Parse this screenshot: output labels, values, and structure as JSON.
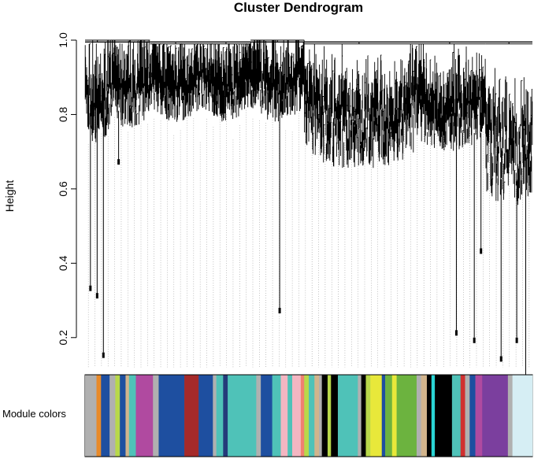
{
  "chart_data": {
    "type": "dendrogram",
    "title": "Cluster Dendrogram",
    "ylabel": "Height",
    "ylim": [
      0.1,
      1.0
    ],
    "yticks": [
      "0.2",
      "0.4",
      "0.6",
      "0.8",
      "1.0"
    ],
    "yticks_values": [
      0.2,
      0.4,
      0.6,
      0.8,
      1.0
    ],
    "color_bar_label": "Module colors",
    "palette": {
      "blue": "#1e4fa0",
      "turquoise": "#4fc2b8",
      "brown": "#a52a2a",
      "magenta": "#b04aa0",
      "pink": "#f4b6c2",
      "tan": "#d2b48c",
      "black": "#000000",
      "yellow": "#e8e83a",
      "green": "#6cb33f",
      "purple": "#7b3f9e",
      "lightcyan": "#d6eef4",
      "grey": "#b0b0b0",
      "salmon": "#f08070",
      "orange": "#e88a2a",
      "greenyellow": "#b8d84a",
      "cyan": "#2ad4d4",
      "red": "#d03030",
      "midnightblue": "#243a7a"
    },
    "dendrogram_groups": [
      {
        "start": 0.0,
        "end": 0.055,
        "merge_height": 1.0,
        "leaf_min": 0.72,
        "leaf_max": 0.95,
        "outliers": [
          [
            0.012,
            0.34
          ],
          [
            0.027,
            0.32
          ],
          [
            0.041,
            0.16
          ]
        ]
      },
      {
        "start": 0.055,
        "end": 0.145,
        "merge_height": 1.0,
        "leaf_min": 0.76,
        "leaf_max": 0.97,
        "outliers": [
          [
            0.075,
            0.68
          ]
        ]
      },
      {
        "start": 0.145,
        "end": 0.26,
        "merge_height": 0.99,
        "leaf_min": 0.78,
        "leaf_max": 0.96,
        "outliers": []
      },
      {
        "start": 0.26,
        "end": 0.37,
        "merge_height": 0.99,
        "leaf_min": 0.78,
        "leaf_max": 0.96,
        "outliers": []
      },
      {
        "start": 0.37,
        "end": 0.49,
        "merge_height": 1.0,
        "leaf_min": 0.78,
        "leaf_max": 0.97,
        "outliers": [
          [
            0.435,
            0.28
          ]
        ]
      },
      {
        "start": 0.49,
        "end": 0.735,
        "merge_height": 0.99,
        "leaf_min": 0.65,
        "leaf_max": 0.96,
        "outliers": []
      },
      {
        "start": 0.735,
        "end": 0.895,
        "merge_height": 0.99,
        "leaf_min": 0.7,
        "leaf_max": 0.95,
        "outliers": [
          [
            0.83,
            0.22
          ],
          [
            0.87,
            0.2
          ],
          [
            0.885,
            0.44
          ]
        ]
      },
      {
        "start": 0.895,
        "end": 1.0,
        "merge_height": 0.99,
        "leaf_min": 0.55,
        "leaf_max": 0.96,
        "outliers": [
          [
            0.93,
            0.15
          ],
          [
            0.965,
            0.2
          ],
          [
            0.985,
            0.09
          ]
        ]
      }
    ],
    "module_colors": [
      [
        "grey",
        0.02
      ],
      [
        "orange",
        0.008
      ],
      [
        "blue",
        0.015
      ],
      [
        "grey",
        0.01
      ],
      [
        "greenyellow",
        0.008
      ],
      [
        "blue",
        0.01
      ],
      [
        "tan",
        0.006
      ],
      [
        "turquoise",
        0.012
      ],
      [
        "magenta",
        0.03
      ],
      [
        "grey",
        0.01
      ],
      [
        "blue",
        0.045
      ],
      [
        "brown",
        0.025
      ],
      [
        "blue",
        0.025
      ],
      [
        "grey",
        0.006
      ],
      [
        "turquoise",
        0.012
      ],
      [
        "midnightblue",
        0.008
      ],
      [
        "turquoise",
        0.05
      ],
      [
        "grey",
        0.008
      ],
      [
        "blue",
        0.02
      ],
      [
        "turquoise",
        0.015
      ],
      [
        "pink",
        0.012
      ],
      [
        "turquoise",
        0.008
      ],
      [
        "pink",
        0.015
      ],
      [
        "salmon",
        0.006
      ],
      [
        "greenyellow",
        0.008
      ],
      [
        "turquoise",
        0.01
      ],
      [
        "tan",
        0.008
      ],
      [
        "grey",
        0.005
      ],
      [
        "black",
        0.01
      ],
      [
        "greenyellow",
        0.006
      ],
      [
        "black",
        0.012
      ],
      [
        "turquoise",
        0.035
      ],
      [
        "grey",
        0.006
      ],
      [
        "black",
        0.008
      ],
      [
        "greenyellow",
        0.008
      ],
      [
        "yellow",
        0.02
      ],
      [
        "blue",
        0.006
      ],
      [
        "green",
        0.012
      ],
      [
        "yellow",
        0.008
      ],
      [
        "green",
        0.035
      ],
      [
        "grey",
        0.008
      ],
      [
        "tan",
        0.01
      ],
      [
        "black",
        0.008
      ],
      [
        "cyan",
        0.006
      ],
      [
        "black",
        0.03
      ],
      [
        "turquoise",
        0.015
      ],
      [
        "red",
        0.008
      ],
      [
        "grey",
        0.008
      ],
      [
        "blue",
        0.01
      ],
      [
        "magenta",
        0.012
      ],
      [
        "purple",
        0.045
      ],
      [
        "grey",
        0.008
      ],
      [
        "lightcyan",
        0.035
      ]
    ]
  }
}
